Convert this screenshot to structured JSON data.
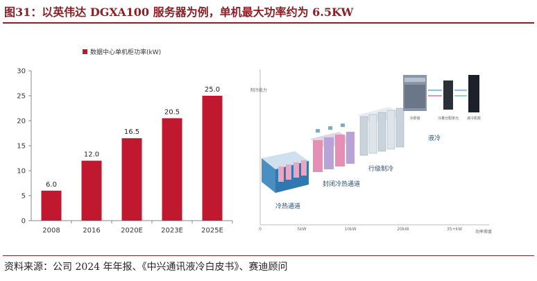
{
  "title": "图31：以英伟达 DGXA100 服务器为例，单机最大功率约为 6.5KW",
  "source": "资料来源：公司 2024 年年报、《中兴通讯液冷白皮书》、赛迪顾问",
  "chart_data": {
    "type": "bar",
    "title": "",
    "legend": [
      "数据中心单机柜功率(kW)"
    ],
    "legend_position": "top",
    "categories": [
      "2008",
      "2016",
      "2020E",
      "2023E",
      "2025E"
    ],
    "series": [
      {
        "name": "数据中心单机柜功率(kW)",
        "values": [
          6.0,
          12.0,
          16.5,
          20.5,
          25.0
        ]
      }
    ],
    "data_labels": [
      "6.0",
      "12.0",
      "16.5",
      "20.5",
      "25.0"
    ],
    "ylim": [
      0,
      30
    ],
    "yticks": [
      0,
      5,
      10,
      15,
      20,
      25,
      30
    ],
    "grid": false,
    "color": "#c0182f"
  },
  "diagram": {
    "y_axis_label": "制冷能力",
    "x_axis_label": "功率密度",
    "x_ticks": [
      "0",
      "5kW",
      "10kW",
      "20kW",
      "35+kW"
    ],
    "stages": [
      "冷热通道",
      "封闭冷热通道",
      "行级制冷",
      "液冷"
    ],
    "liquid_cooling_parts": [
      "冷却塔",
      "冷量分配单元",
      "液冷机柜"
    ]
  }
}
